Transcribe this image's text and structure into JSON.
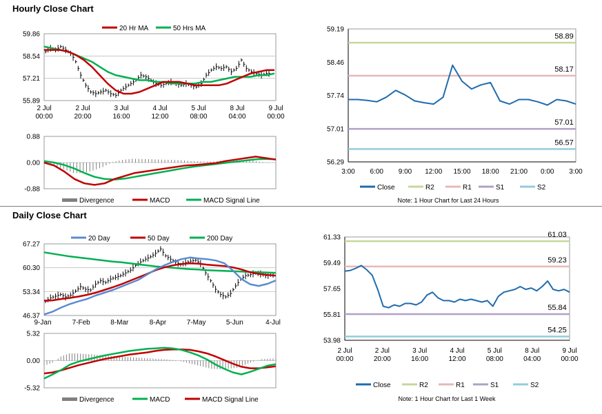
{
  "hourly_title": "Hourly Close Chart",
  "daily_title": "Daily Close Chart",
  "colors": {
    "ma20h": "#c00000",
    "ma50h": "#00b050",
    "price": "#000000",
    "macd_red": "#c00000",
    "signal_green": "#00b050",
    "divergence": "#808080",
    "close": "#1f6bad",
    "r2": "#c4d79b",
    "r1": "#e6b8b7",
    "s1": "#b1a0c7",
    "s2": "#92cddc",
    "ma20d": "#5b8bd0",
    "ma50d": "#c00000",
    "ma200d": "#00b050",
    "grid": "#c8c8c8"
  },
  "chart_data": [
    {
      "id": "hourly_price",
      "type": "line",
      "title": "Hourly Close Chart",
      "ylim": [
        55.89,
        59.86
      ],
      "yticks": [
        "59.86",
        "58.54",
        "57.21",
        "55.89"
      ],
      "xticks": [
        "2 Jul\n00:00",
        "2 Jul\n20:00",
        "3 Jul\n16:00",
        "4 Jul\n12:00",
        "5 Jul\n08:00",
        "8 Jul\n04:00",
        "9 Jul\n00:00"
      ],
      "legend": [
        "20 Hr MA",
        "50 Hrs MA"
      ],
      "price": [
        58.8,
        59.0,
        58.9,
        59.1,
        58.9,
        58.7,
        58.2,
        57.4,
        56.8,
        56.4,
        56.3,
        56.4,
        56.5,
        56.3,
        56.2,
        56.5,
        56.7,
        56.9,
        57.1,
        57.4,
        57.3,
        57.1,
        56.9,
        56.8,
        56.9,
        57.0,
        56.9,
        56.8,
        56.9,
        56.8,
        56.7,
        56.9,
        57.4,
        57.7,
        57.9,
        57.8,
        57.9,
        57.6,
        57.8,
        58.3,
        57.8,
        57.6,
        57.5,
        57.4,
        57.5
      ],
      "ma20": [
        58.9,
        58.9,
        58.9,
        58.8,
        58.6,
        58.3,
        57.9,
        57.4,
        56.9,
        56.5,
        56.3,
        56.3,
        56.4,
        56.6,
        56.8,
        57.0,
        57.0,
        57.0,
        56.9,
        56.8,
        56.8,
        56.8,
        56.8,
        56.9,
        57.1,
        57.3,
        57.5,
        57.6,
        57.7,
        57.7
      ],
      "ma50": [
        59.1,
        59.0,
        58.9,
        58.8,
        58.6,
        58.4,
        58.2,
        57.9,
        57.6,
        57.4,
        57.3,
        57.2,
        57.1,
        57.1,
        57.0,
        57.0,
        56.9,
        56.9,
        56.9,
        56.9,
        57.0,
        57.0,
        57.1,
        57.2,
        57.3,
        57.3,
        57.3,
        57.4,
        57.4,
        57.5
      ]
    },
    {
      "id": "hourly_macd",
      "type": "line",
      "ylim": [
        -0.88,
        0.88
      ],
      "yticks": [
        "0.88",
        "0.00",
        "-0.88"
      ],
      "legend": [
        "Divergence",
        "MACD",
        "MACD Signal Line"
      ],
      "macd": [
        0.0,
        -0.1,
        -0.3,
        -0.55,
        -0.7,
        -0.75,
        -0.7,
        -0.55,
        -0.45,
        -0.35,
        -0.3,
        -0.25,
        -0.2,
        -0.15,
        -0.1,
        -0.08,
        -0.05,
        -0.02,
        0.05,
        0.1,
        0.15,
        0.2,
        0.15,
        0.1
      ],
      "signal": [
        0.05,
        0.0,
        -0.08,
        -0.2,
        -0.35,
        -0.48,
        -0.55,
        -0.57,
        -0.54,
        -0.48,
        -0.42,
        -0.36,
        -0.3,
        -0.24,
        -0.18,
        -0.13,
        -0.09,
        -0.05,
        -0.01,
        0.03,
        0.07,
        0.11,
        0.12,
        0.11
      ],
      "divergence": [
        -0.05,
        -0.1,
        -0.22,
        -0.35,
        -0.35,
        -0.27,
        -0.15,
        0.02,
        0.09,
        0.13,
        0.12,
        0.11,
        0.1,
        0.09,
        0.08,
        0.05,
        0.04,
        0.03,
        0.06,
        0.07,
        0.08,
        0.09,
        0.03,
        -0.01
      ]
    },
    {
      "id": "hourly_levels",
      "type": "line",
      "ylim": [
        56.29,
        59.19
      ],
      "yticks": [
        "59.19",
        "58.46",
        "57.74",
        "57.01",
        "56.29"
      ],
      "xticks": [
        "3:00",
        "6:00",
        "9:00",
        "12:00",
        "15:00",
        "18:00",
        "21:00",
        "0:00",
        "3:00"
      ],
      "close": [
        57.65,
        57.65,
        57.63,
        57.6,
        57.7,
        57.85,
        57.75,
        57.62,
        57.58,
        57.55,
        57.7,
        58.4,
        58.05,
        57.88,
        57.97,
        58.02,
        57.62,
        57.55,
        57.65,
        57.65,
        57.6,
        57.53,
        57.65,
        57.62,
        57.55
      ],
      "levels": {
        "R2": 58.89,
        "R1": 58.17,
        "S1": 57.01,
        "S2": 56.57
      },
      "level_labels": [
        "58.89",
        "58.17",
        "57.01",
        "56.57"
      ],
      "legend": [
        "Close",
        "R2",
        "R1",
        "S1",
        "S2"
      ],
      "note": "Note: 1 Hour Chart for Last 24 Hours"
    },
    {
      "id": "daily_price",
      "type": "line",
      "title": "Daily Close Chart",
      "ylim": [
        46.37,
        67.27
      ],
      "yticks": [
        "67.27",
        "60.30",
        "53.34",
        "46.37"
      ],
      "xticks": [
        "9-Jan",
        "7-Feb",
        "8-Mar",
        "8-Apr",
        "7-May",
        "5-Jun",
        "4-Jul"
      ],
      "legend": [
        "20 Day",
        "50 Day",
        "200 Day"
      ],
      "price": [
        50.5,
        51.5,
        52.0,
        52.5,
        51.8,
        52.3,
        53.5,
        54.8,
        54.0,
        53.8,
        55.5,
        56.5,
        56.0,
        57.0,
        57.5,
        58.0,
        58.8,
        59.6,
        61.0,
        62.0,
        62.8,
        63.5,
        64.5,
        65.8,
        63.8,
        62.8,
        62.0,
        61.2,
        61.8,
        62.2,
        62.5,
        61.5,
        58.8,
        56.5,
        54.0,
        52.5,
        51.8,
        52.8,
        55.0,
        57.0,
        58.0,
        58.3,
        58.8,
        58.5,
        58.0,
        58.2
      ],
      "ma20": [
        46.7,
        47.5,
        48.7,
        49.7,
        50.5,
        51.2,
        52.2,
        53.0,
        53.8,
        54.8,
        55.8,
        56.8,
        58.3,
        59.8,
        61.0,
        62.0,
        62.8,
        63.3,
        63.0,
        62.8,
        62.4,
        61.6,
        59.5,
        57.0,
        55.5,
        55.0,
        55.6,
        56.6
      ],
      "ma50": [
        50.7,
        50.8,
        51.2,
        51.5,
        51.9,
        52.4,
        53.0,
        53.8,
        54.6,
        55.5,
        56.5,
        57.5,
        58.5,
        59.6,
        60.4,
        61.0,
        61.4,
        61.6,
        61.5,
        61.2,
        61.0,
        60.8,
        60.4,
        59.8,
        59.0,
        58.5,
        58.2,
        58.0
      ],
      "ma200": [
        64.8,
        64.4,
        64.0,
        63.6,
        63.3,
        63.0,
        62.7,
        62.4,
        62.1,
        61.9,
        61.6,
        61.3,
        61.0,
        60.7,
        60.5,
        60.3,
        60.1,
        59.9,
        59.8,
        59.6,
        59.5,
        59.4,
        59.3,
        59.2,
        59.1,
        59.0,
        58.9,
        58.8
      ]
    },
    {
      "id": "daily_macd",
      "type": "line",
      "ylim": [
        -5.32,
        5.32
      ],
      "yticks": [
        "5.32",
        "0.00",
        "-5.32"
      ],
      "legend": [
        "Divergence",
        "MACD",
        "MACD Signal Line"
      ],
      "macd": [
        -3.5,
        -2.7,
        -1.8,
        -0.8,
        -0.2,
        0.2,
        0.6,
        1.0,
        1.3,
        1.6,
        1.9,
        2.1,
        2.3,
        2.4,
        2.5,
        2.4,
        2.1,
        1.6,
        1.0,
        0.2,
        -0.8,
        -1.6,
        -2.3,
        -2.7,
        -2.2,
        -1.6,
        -1.0,
        -0.7
      ],
      "signal": [
        -2.5,
        -2.3,
        -1.9,
        -1.4,
        -0.9,
        -0.5,
        -0.1,
        0.3,
        0.6,
        0.9,
        1.2,
        1.4,
        1.6,
        1.9,
        2.1,
        2.2,
        2.2,
        2.1,
        1.8,
        1.4,
        0.8,
        0.1,
        -0.6,
        -1.2,
        -1.5,
        -1.5,
        -1.3,
        -1.1
      ],
      "divergence": [
        -1.0,
        -0.4,
        0.8,
        1.4,
        1.4,
        1.3,
        1.2,
        1.0,
        0.9,
        0.8,
        0.7,
        0.6,
        0.5,
        0.4,
        0.3,
        0.2,
        0.0,
        -0.4,
        -0.8,
        -1.2,
        -1.6,
        -1.7,
        -1.6,
        -1.4,
        -0.8,
        -0.2,
        0.3,
        0.4
      ]
    },
    {
      "id": "daily_levels",
      "type": "line",
      "ylim": [
        53.98,
        61.33
      ],
      "yticks": [
        "61.33",
        "59.49",
        "57.65",
        "55.81",
        "53.98"
      ],
      "xticks": [
        "2 Jul\n00:00",
        "2 Jul\n20:00",
        "3 Jul\n16:00",
        "4 Jul\n12:00",
        "5 Jul\n08:00",
        "8 Jul\n04:00",
        "9 Jul\n00:00"
      ],
      "close": [
        58.9,
        58.95,
        59.1,
        59.3,
        59.0,
        58.6,
        57.6,
        56.4,
        56.3,
        56.5,
        56.4,
        56.6,
        56.6,
        56.5,
        56.7,
        57.2,
        57.4,
        57.0,
        56.8,
        56.8,
        56.7,
        56.9,
        56.8,
        56.9,
        56.8,
        56.7,
        56.8,
        56.4,
        57.1,
        57.4,
        57.5,
        57.6,
        57.8,
        57.6,
        57.7,
        57.5,
        57.8,
        58.2,
        57.6,
        57.5,
        57.6,
        57.4
      ],
      "levels": {
        "R2": 61.03,
        "R1": 59.23,
        "S1": 55.84,
        "S2": 54.25
      },
      "level_labels": [
        "61.03",
        "59.23",
        "55.84",
        "54.25"
      ],
      "legend": [
        "Close",
        "R2",
        "R1",
        "S1",
        "S2"
      ],
      "note": "Note: 1 Hour Chart for Last 1 Week"
    }
  ]
}
